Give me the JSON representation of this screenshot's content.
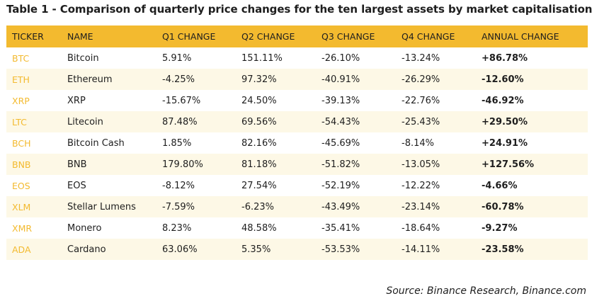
{
  "title": "Table 1 - Comparison of quarterly price changes for the ten largest assets by market capitalisation",
  "colors": {
    "header_bg": "#f3ba2f",
    "ticker_text": "#f3ba2f",
    "stripe_bg": "#fdf8e6"
  },
  "table": {
    "headers": [
      "TICKER",
      "NAME",
      "Q1 CHANGE",
      "Q2 CHANGE",
      "Q3 CHANGE",
      "Q4 CHANGE",
      "ANNUAL CHANGE"
    ],
    "rows": [
      {
        "ticker": "BTC",
        "name": "Bitcoin",
        "q1": "5.91%",
        "q2": "151.11%",
        "q3": "-26.10%",
        "q4": "-13.24%",
        "annual": "+86.78%"
      },
      {
        "ticker": "ETH",
        "name": "Ethereum",
        "q1": "-4.25%",
        "q2": "97.32%",
        "q3": "-40.91%",
        "q4": "-26.29%",
        "annual": "-12.60%"
      },
      {
        "ticker": "XRP",
        "name": "XRP",
        "q1": "-15.67%",
        "q2": "24.50%",
        "q3": "-39.13%",
        "q4": "-22.76%",
        "annual": "-46.92%"
      },
      {
        "ticker": "LTC",
        "name": "Litecoin",
        "q1": "87.48%",
        "q2": "69.56%",
        "q3": "-54.43%",
        "q4": "-25.43%",
        "annual": "+29.50%"
      },
      {
        "ticker": "BCH",
        "name": "Bitcoin Cash",
        "q1": "1.85%",
        "q2": "82.16%",
        "q3": "-45.69%",
        "q4": "-8.14%",
        "annual": "+24.91%"
      },
      {
        "ticker": "BNB",
        "name": "BNB",
        "q1": "179.80%",
        "q2": "81.18%",
        "q3": "-51.82%",
        "q4": "-13.05%",
        "annual": "+127.56%"
      },
      {
        "ticker": "EOS",
        "name": "EOS",
        "q1": "-8.12%",
        "q2": "27.54%",
        "q3": "-52.19%",
        "q4": "-12.22%",
        "annual": "-4.66%"
      },
      {
        "ticker": "XLM",
        "name": "Stellar Lumens",
        "q1": "-7.59%",
        "q2": "-6.23%",
        "q3": "-43.49%",
        "q4": "-23.14%",
        "annual": "-60.78%"
      },
      {
        "ticker": "XMR",
        "name": "Monero",
        "q1": "8.23%",
        "q2": "48.58%",
        "q3": "-35.41%",
        "q4": "-18.64%",
        "annual": "-9.27%"
      },
      {
        "ticker": "ADA",
        "name": "Cardano",
        "q1": "63.06%",
        "q2": "5.35%",
        "q3": "-53.53%",
        "q4": "-14.11%",
        "annual": "-23.58%"
      }
    ]
  },
  "source": "Source: Binance Research, Binance.com"
}
